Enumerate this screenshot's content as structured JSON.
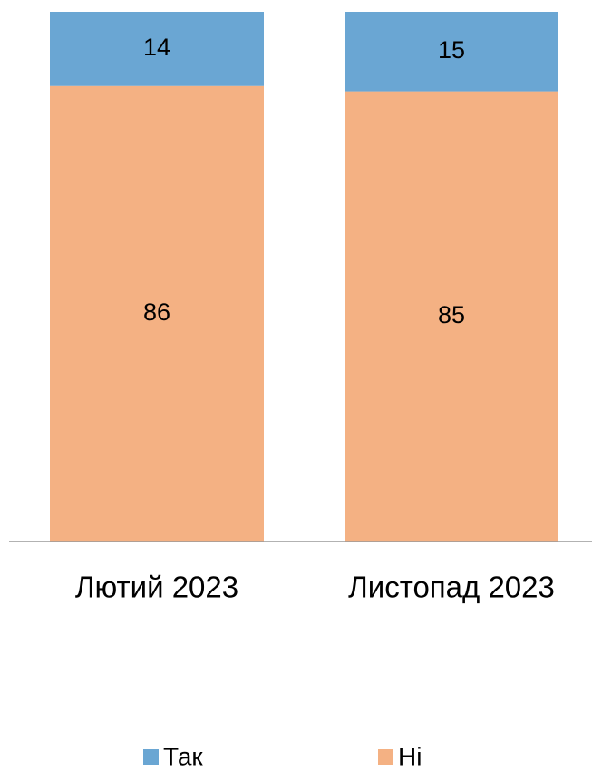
{
  "chart_data": {
    "type": "stacked_bar",
    "categories": [
      "Лютий 2023",
      "Листопад 2023"
    ],
    "series": [
      {
        "name": "Ні",
        "color": "#f4b183",
        "values": [
          86,
          85
        ]
      },
      {
        "name": "Так",
        "color": "#6aa6d3",
        "values": [
          14,
          15
        ]
      }
    ],
    "ylim": [
      0,
      100
    ],
    "legend": "bottom"
  }
}
